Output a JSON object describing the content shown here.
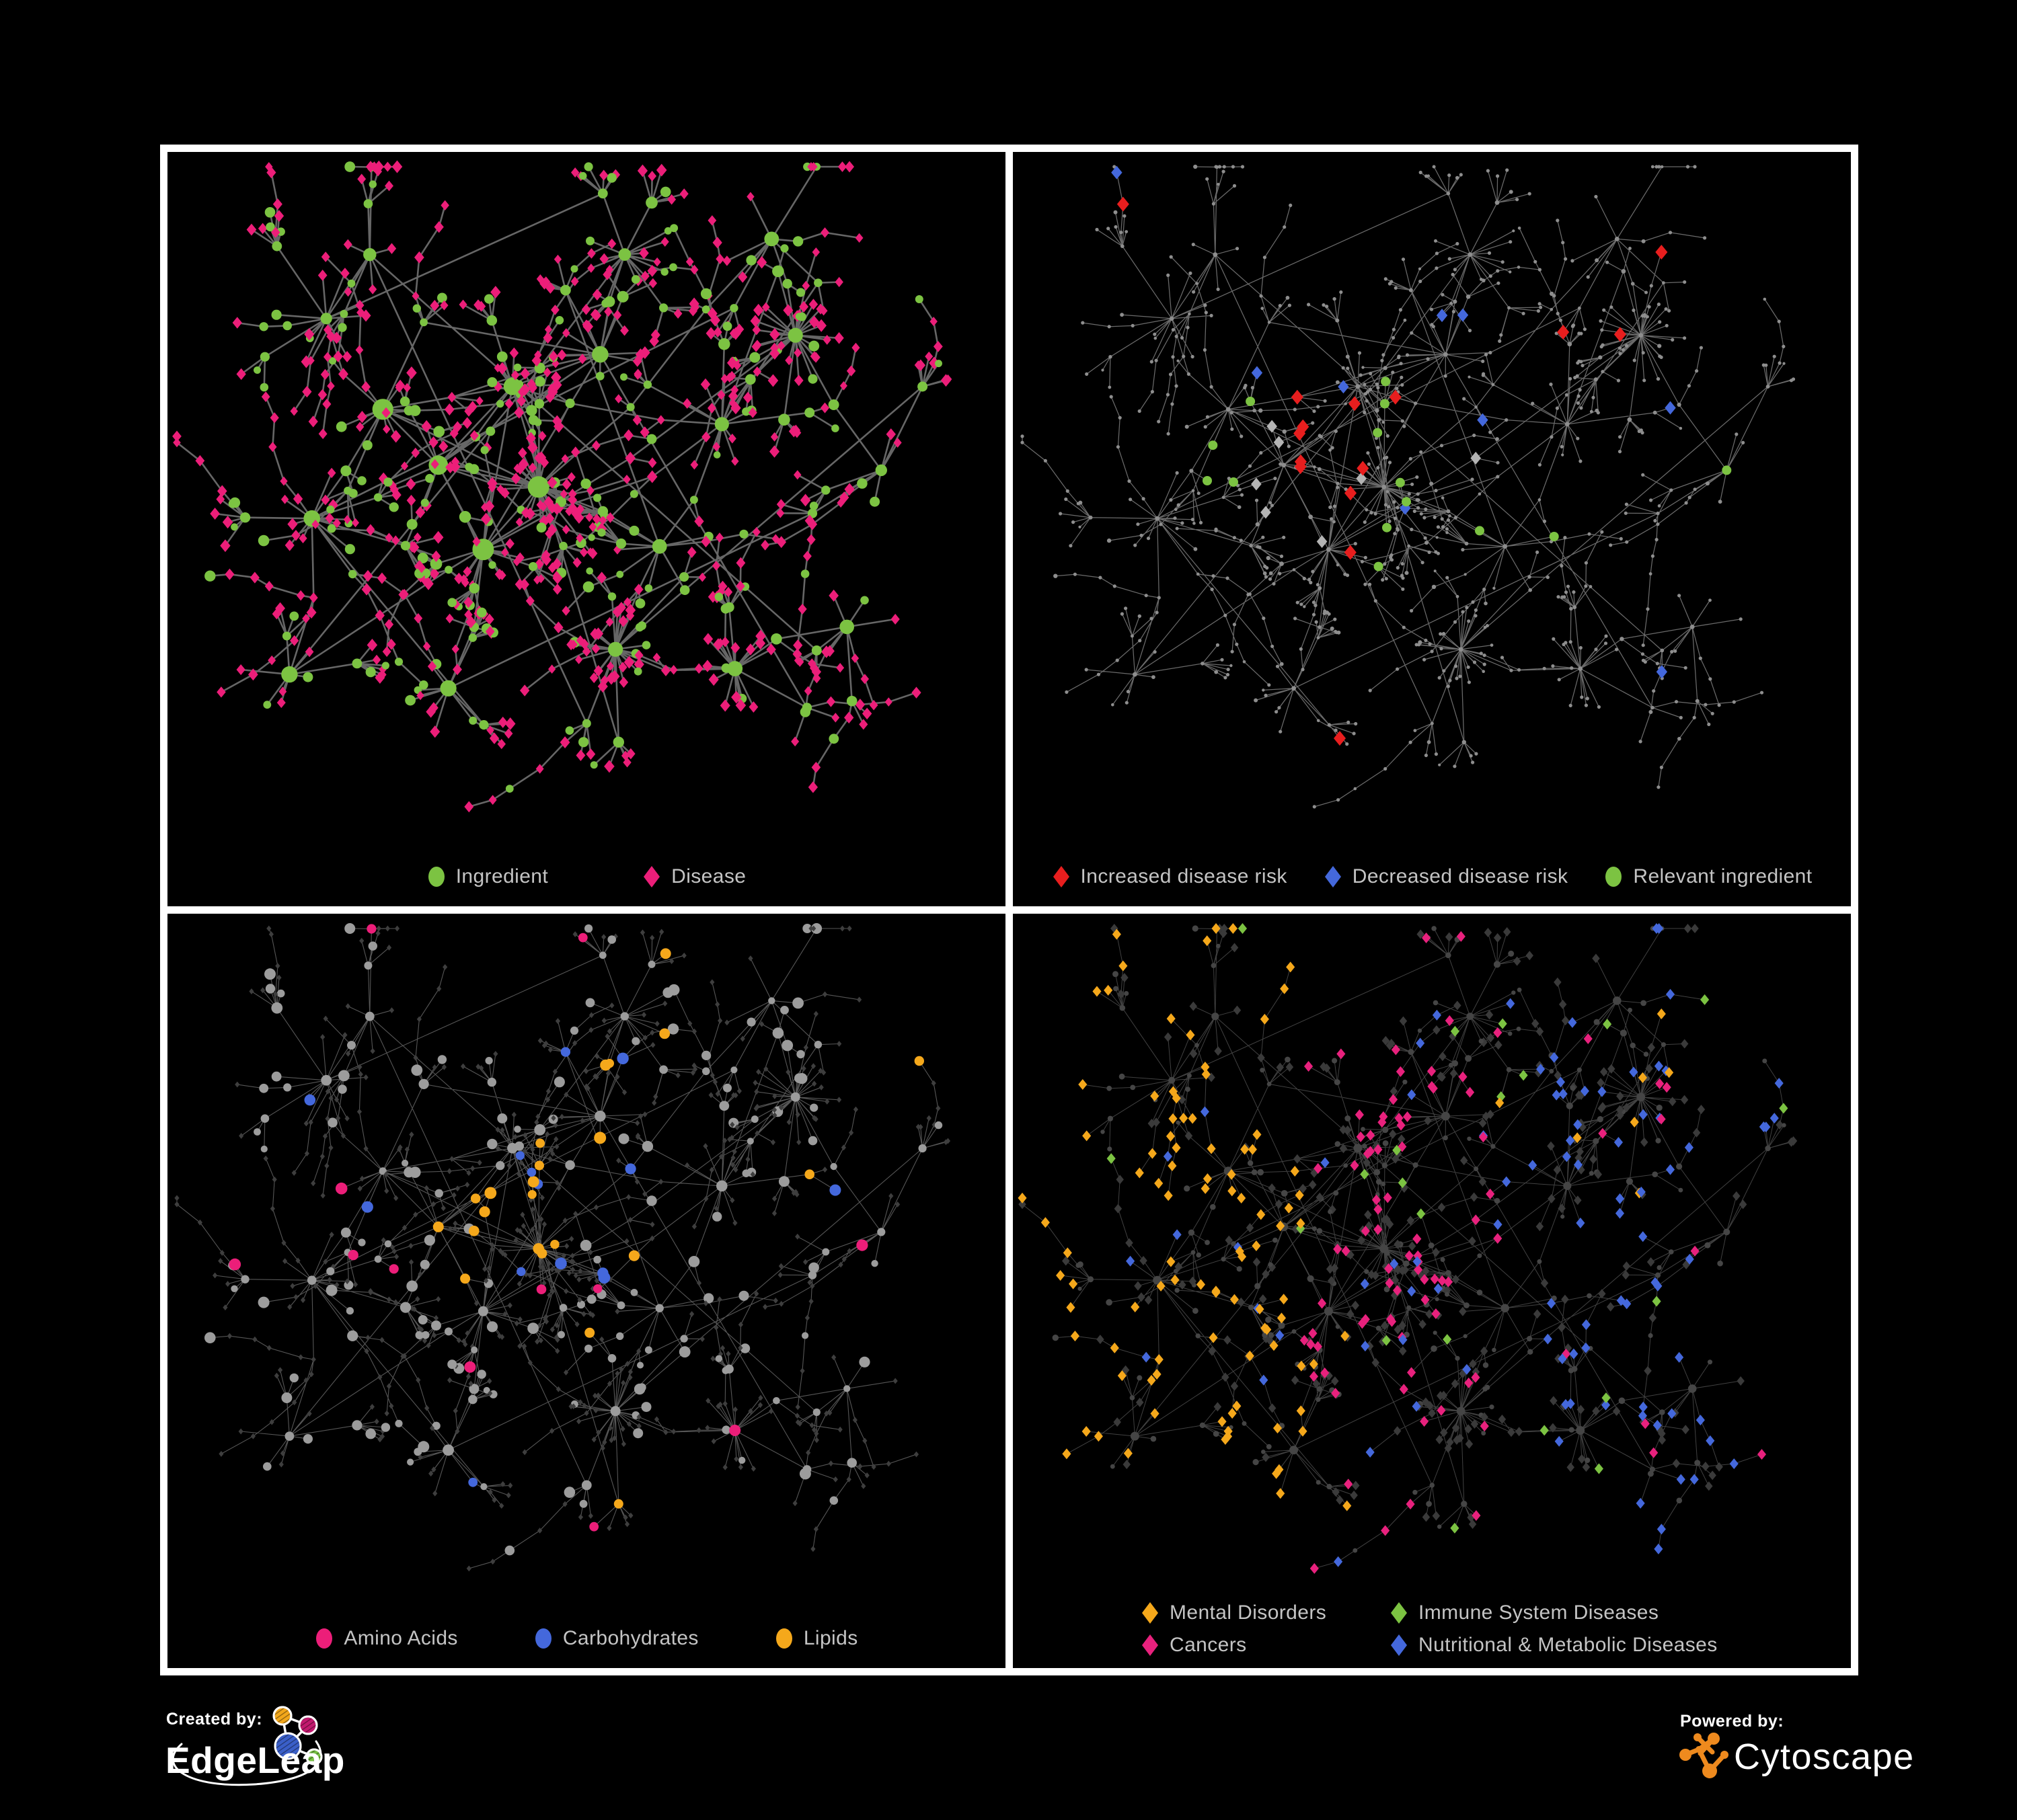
{
  "branding": {
    "created_by_label": "Created by:",
    "created_by_name": "EdgeLeap",
    "powered_by_label": "Powered by:",
    "powered_by_name": "Cytoscape"
  },
  "colors": {
    "background": "#000000",
    "panel_border": "#FFFFFF",
    "legend_text": "#C4C4C4",
    "green": "#7CC342",
    "pink": "#EC1E79",
    "red": "#E81E1E",
    "blue": "#4468DC",
    "orange": "#F5A81B",
    "magenta": "#E8217D",
    "gray_node": "#9C9C9C",
    "light_gray_diamond": "#B4B4B4",
    "dark_node": "#3E3E3E",
    "edge_dark": "#6C6C6C",
    "edge_light": "#8A8A8A",
    "edgeleap_orange": "#F2A71B",
    "edgeleap_magenta": "#C2196E",
    "edgeleap_blue": "#3A5FC8",
    "edgeleap_green": "#76C043",
    "cytoscape_orange": "#EE8A1E"
  },
  "panels": [
    {
      "id": "ingredient-disease",
      "position": "top-left",
      "legend": [
        {
          "label": "Ingredient",
          "shape": "circle",
          "color": "#7CC342"
        },
        {
          "label": "Disease",
          "shape": "diamond",
          "color": "#EC1E79"
        }
      ]
    },
    {
      "id": "disease-risk",
      "position": "top-right",
      "legend": [
        {
          "label": "Increased disease risk",
          "shape": "diamond",
          "color": "#E81E1E"
        },
        {
          "label": "Decreased disease risk",
          "shape": "diamond",
          "color": "#4468DC"
        },
        {
          "label": "Relevant ingredient",
          "shape": "circle",
          "color": "#7CC342"
        }
      ]
    },
    {
      "id": "nutrient-classes",
      "position": "bottom-left",
      "legend": [
        {
          "label": "Amino Acids",
          "shape": "circle",
          "color": "#EC1E79"
        },
        {
          "label": "Carbohydrates",
          "shape": "circle",
          "color": "#4468DC"
        },
        {
          "label": "Lipids",
          "shape": "circle",
          "color": "#F5A81B"
        }
      ]
    },
    {
      "id": "disease-categories",
      "position": "bottom-right",
      "legend": [
        {
          "label": "Mental Disorders",
          "shape": "diamond",
          "color": "#F5A81B"
        },
        {
          "label": "Immune System Diseases",
          "shape": "diamond",
          "color": "#7CC342"
        },
        {
          "label": "Cancers",
          "shape": "diamond",
          "color": "#E8217D"
        },
        {
          "label": "Nutritional & Metabolic Diseases",
          "shape": "diamond",
          "color": "#4468DC"
        }
      ]
    }
  ]
}
